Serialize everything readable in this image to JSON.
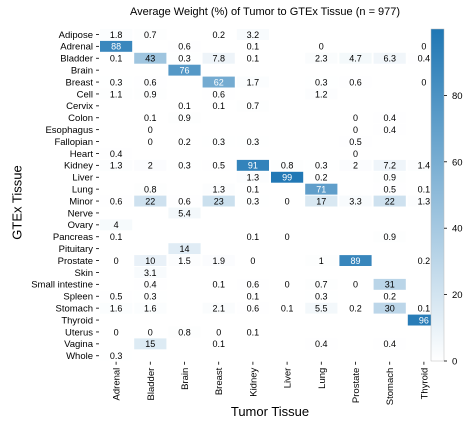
{
  "chart_data": {
    "type": "heatmap",
    "title": "Average Weight (%) of Tumor to GTEx Tissue (n = 977)",
    "xlabel": "Tumor Tissue",
    "ylabel": "GTEx Tissue",
    "columns": [
      "Adrenal",
      "Bladder",
      "Brain",
      "Breast",
      "Kidney",
      "Liver",
      "Lung",
      "Prostate",
      "Stomach",
      "Thyroid"
    ],
    "rows": [
      "Adipose",
      "Adrenal",
      "Bladder",
      "Brain",
      "Breast",
      "Cell",
      "Cervix",
      "Colon",
      "Esophagus",
      "Fallopian",
      "Heart",
      "Kidney",
      "Liver",
      "Lung",
      "Minor",
      "Nerve",
      "Ovary",
      "Pancreas",
      "Pituitary",
      "Prostate",
      "Skin",
      "Small intestine",
      "Spleen",
      "Stomach",
      "Thyroid",
      "Uterus",
      "Vagina",
      "Whole"
    ],
    "values": [
      [
        "1.8",
        "0.7",
        null,
        "0.2",
        "3.2",
        null,
        null,
        null,
        null,
        null
      ],
      [
        "88",
        null,
        "0.6",
        null,
        "0.1",
        null,
        "0",
        null,
        null,
        "0"
      ],
      [
        "0.1",
        "43",
        "0.3",
        "7.8",
        "0.1",
        null,
        "2.3",
        "4.7",
        "6.3",
        "0.4"
      ],
      [
        null,
        null,
        "76",
        null,
        null,
        null,
        null,
        null,
        null,
        null
      ],
      [
        "0.3",
        "0.6",
        null,
        "62",
        "1.7",
        null,
        "0.3",
        "0.6",
        null,
        "0"
      ],
      [
        "1.1",
        "0.9",
        null,
        "0.6",
        null,
        null,
        "1.2",
        null,
        null,
        null
      ],
      [
        null,
        null,
        "0.1",
        "0.1",
        "0.7",
        null,
        null,
        null,
        null,
        null
      ],
      [
        null,
        "0.1",
        "0.9",
        null,
        null,
        null,
        null,
        "0",
        "0.4",
        null
      ],
      [
        null,
        "0",
        null,
        null,
        null,
        null,
        null,
        "0",
        "0.4",
        null
      ],
      [
        null,
        "0",
        "0.2",
        "0.3",
        "0.3",
        null,
        null,
        "0.5",
        null,
        null
      ],
      [
        "0.4",
        null,
        null,
        null,
        null,
        null,
        null,
        "0",
        null,
        null
      ],
      [
        "1.3",
        "2",
        "0.3",
        "0.5",
        "91",
        "0.8",
        "0.3",
        "2",
        "7.2",
        "1.4"
      ],
      [
        null,
        null,
        null,
        null,
        "1.3",
        "99",
        "0.2",
        null,
        "0.9",
        null
      ],
      [
        null,
        "0.8",
        null,
        "1.3",
        "0.1",
        null,
        "71",
        null,
        "0.5",
        "0.1"
      ],
      [
        "0.6",
        "22",
        "0.6",
        "23",
        "0.3",
        "0",
        "17",
        "3.3",
        "22",
        "1.3"
      ],
      [
        null,
        null,
        "5.4",
        null,
        null,
        null,
        null,
        null,
        null,
        null
      ],
      [
        "4",
        null,
        null,
        null,
        null,
        null,
        null,
        null,
        null,
        null
      ],
      [
        "0.1",
        null,
        null,
        null,
        "0.1",
        "0",
        null,
        null,
        "0.9",
        null
      ],
      [
        null,
        null,
        "14",
        null,
        null,
        null,
        null,
        null,
        null,
        null
      ],
      [
        "0",
        "10",
        "1.5",
        "1.9",
        "0",
        null,
        "1",
        "89",
        null,
        "0.2"
      ],
      [
        null,
        "3.1",
        null,
        null,
        null,
        null,
        null,
        null,
        null,
        null
      ],
      [
        null,
        "0.4",
        null,
        "0.1",
        "0.6",
        "0",
        "0.7",
        "0",
        "31",
        null
      ],
      [
        "0.5",
        "0.3",
        null,
        null,
        "0.1",
        null,
        "0.3",
        null,
        "0.2",
        null
      ],
      [
        "1.6",
        "1.6",
        null,
        "2.1",
        "0.6",
        "0.1",
        "5.5",
        "0.2",
        "30",
        "0.1"
      ],
      [
        null,
        null,
        null,
        null,
        null,
        null,
        null,
        null,
        null,
        "96"
      ],
      [
        "0",
        "0",
        "0.8",
        "0",
        "0.1",
        null,
        null,
        null,
        null,
        null
      ],
      [
        null,
        "15",
        null,
        "0.1",
        null,
        null,
        "0.4",
        null,
        "0.4",
        null
      ],
      [
        "0.3",
        null,
        null,
        null,
        null,
        null,
        null,
        null,
        null,
        null
      ]
    ],
    "colorbar": {
      "min": 0,
      "max": 100,
      "ticks": [
        0,
        20,
        40,
        60,
        80
      ],
      "low_color": "#ffffff",
      "high_color": "#1f77b4"
    }
  }
}
